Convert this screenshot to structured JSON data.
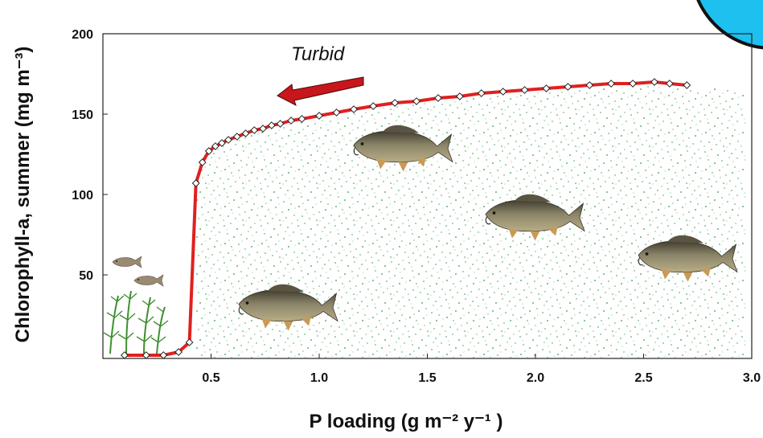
{
  "chart_data": {
    "type": "line",
    "xlabel": "P loading (g m⁻² y⁻¹ )",
    "ylabel": "Chlorophyll-a, summer (mg m⁻³)",
    "xlim": [
      0.0,
      3.0
    ],
    "ylim": [
      0,
      200
    ],
    "x_ticks": [
      {
        "value": 0.5,
        "label": "0.5"
      },
      {
        "value": 1.0,
        "label": "1.0"
      },
      {
        "value": 1.5,
        "label": "1.5"
      },
      {
        "value": 2.0,
        "label": "2.0"
      },
      {
        "value": 2.5,
        "label": "2.5"
      },
      {
        "value": 3.0,
        "label": "3.0"
      }
    ],
    "y_ticks": [
      {
        "value": 50,
        "label": "50"
      },
      {
        "value": 100,
        "label": "100"
      },
      {
        "value": 150,
        "label": "150"
      },
      {
        "value": 200,
        "label": "200"
      }
    ],
    "annotation": "Turbid",
    "series": [
      {
        "color": "#e02020",
        "marker": "diamond",
        "x": [
          0.1,
          0.2,
          0.28,
          0.35,
          0.4,
          0.43,
          0.46,
          0.49,
          0.52,
          0.55,
          0.58,
          0.62,
          0.66,
          0.7,
          0.74,
          0.78,
          0.82,
          0.87,
          0.92,
          1.0,
          1.08,
          1.16,
          1.25,
          1.35,
          1.45,
          1.55,
          1.65,
          1.75,
          1.85,
          1.95,
          2.05,
          2.15,
          2.25,
          2.35,
          2.45,
          2.55,
          2.62,
          2.7
        ],
        "y": [
          0,
          0,
          0,
          2,
          8,
          107,
          120,
          127,
          130,
          132,
          134,
          136,
          138,
          140,
          141,
          143,
          144,
          146,
          147,
          149,
          151,
          153,
          155,
          157,
          158,
          160,
          161,
          163,
          164,
          165,
          166,
          167,
          168,
          169,
          169,
          170,
          169,
          168
        ]
      }
    ],
    "colors": {
      "line": "#e02020",
      "arrow": "#c8161c",
      "algae": "#2e9e48",
      "plants": "#3f8f2f",
      "fish_body": "#6f6a55",
      "corner_circle": "#1ec0f0"
    },
    "decorations": [
      "algae-speckle-region",
      "carp-fish",
      "small-fish",
      "aquatic-plants",
      "corner-circle"
    ]
  }
}
